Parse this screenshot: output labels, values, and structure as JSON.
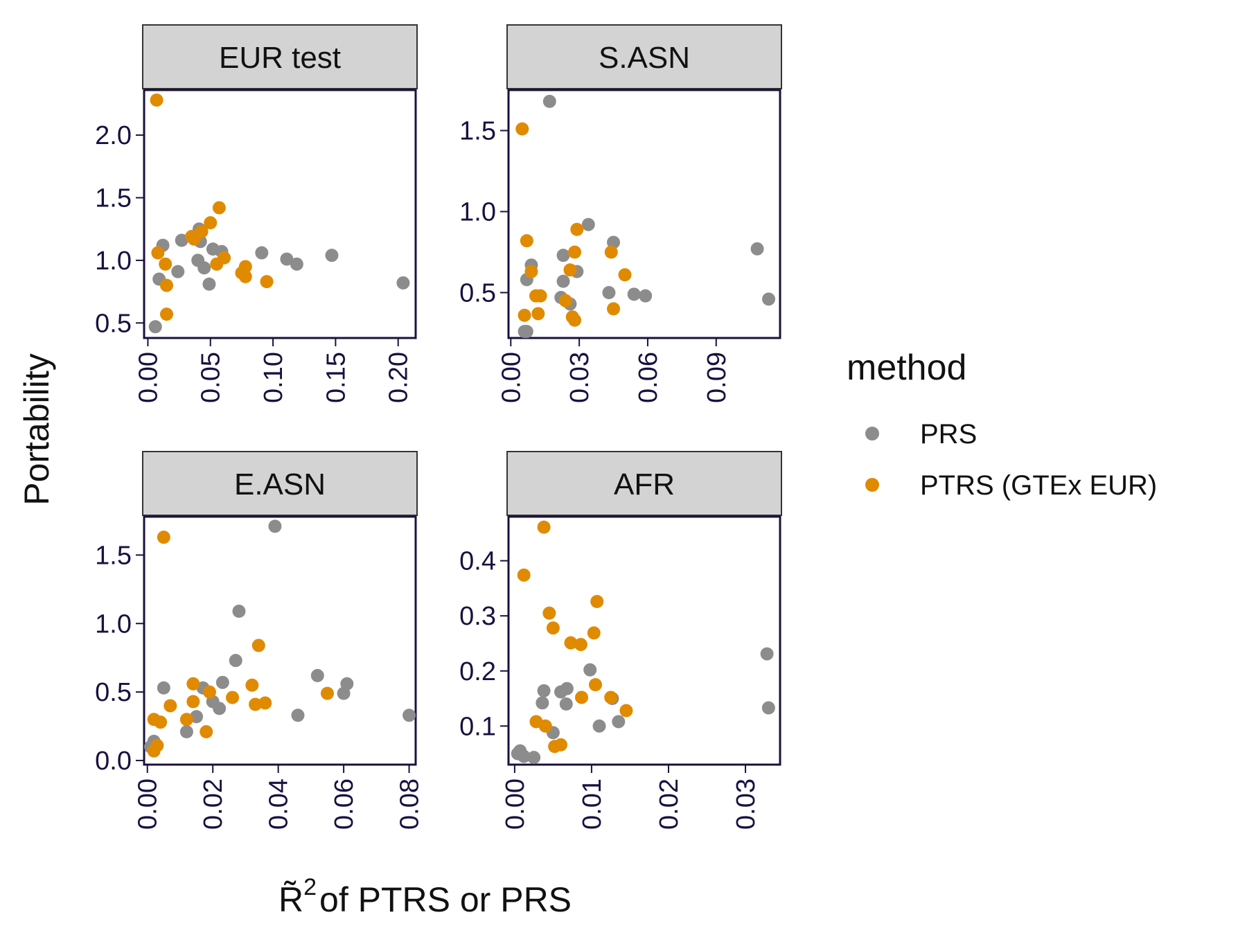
{
  "chart_data": {
    "type": "scatter",
    "ylabel": "Portability",
    "xlabel_prefix": "R̃",
    "xlabel_sup": "2",
    "xlabel_rest": "of PTRS or PRS",
    "legend": {
      "title": "method",
      "position": "right",
      "entries": [
        {
          "name": "PRS",
          "color": "#8c8c8c"
        },
        {
          "name": "PTRS (GTEx EUR)",
          "color": "#e08a00"
        }
      ]
    },
    "panels": [
      {
        "title": "EUR test",
        "xlim": [
          -0.003,
          0.214
        ],
        "ylim": [
          0.38,
          2.36
        ],
        "xticks": [
          0,
          0.05,
          0.1,
          0.15,
          0.2
        ],
        "xtick_labels": [
          "0.00",
          "0.05",
          "0.10",
          "0.15",
          "0.20"
        ],
        "yticks": [
          0.5,
          1.0,
          1.5,
          2.0
        ],
        "ytick_labels": [
          "0.5",
          "1.0",
          "1.5",
          "2.0"
        ],
        "series": [
          {
            "name": "PRS",
            "points": [
              [
                0.006,
                0.47
              ],
              [
                0.009,
                0.85
              ],
              [
                0.012,
                1.12
              ],
              [
                0.024,
                0.91
              ],
              [
                0.027,
                1.16
              ],
              [
                0.04,
                1.0
              ],
              [
                0.041,
                1.25
              ],
              [
                0.042,
                1.15
              ],
              [
                0.045,
                0.94
              ],
              [
                0.049,
                0.81
              ],
              [
                0.052,
                1.09
              ],
              [
                0.059,
                1.07
              ],
              [
                0.091,
                1.06
              ],
              [
                0.111,
                1.01
              ],
              [
                0.119,
                0.97
              ],
              [
                0.147,
                1.04
              ],
              [
                0.204,
                0.82
              ]
            ]
          },
          {
            "name": "PTRS (GTEx EUR)",
            "points": [
              [
                0.007,
                2.28
              ],
              [
                0.008,
                1.06
              ],
              [
                0.014,
                0.97
              ],
              [
                0.015,
                0.8
              ],
              [
                0.015,
                0.57
              ],
              [
                0.035,
                1.19
              ],
              [
                0.037,
                1.17
              ],
              [
                0.043,
                1.23
              ],
              [
                0.05,
                1.3
              ],
              [
                0.055,
                0.97
              ],
              [
                0.057,
                1.42
              ],
              [
                0.061,
                1.02
              ],
              [
                0.075,
                0.9
              ],
              [
                0.078,
                0.95
              ],
              [
                0.078,
                0.87
              ],
              [
                0.095,
                0.83
              ]
            ]
          }
        ]
      },
      {
        "title": "S.ASN",
        "xlim": [
          -0.001,
          0.118
        ],
        "ylim": [
          0.22,
          1.75
        ],
        "xticks": [
          0,
          0.03,
          0.06,
          0.09
        ],
        "xtick_labels": [
          "0.00",
          "0.03",
          "0.06",
          "0.09"
        ],
        "yticks": [
          0.5,
          1.0,
          1.5
        ],
        "ytick_labels": [
          "0.5",
          "1.0",
          "1.5"
        ],
        "series": [
          {
            "name": "PRS",
            "points": [
              [
                0.006,
                0.26
              ],
              [
                0.007,
                0.26
              ],
              [
                0.007,
                0.58
              ],
              [
                0.009,
                0.67
              ],
              [
                0.017,
                1.68
              ],
              [
                0.022,
                0.47
              ],
              [
                0.023,
                0.57
              ],
              [
                0.023,
                0.73
              ],
              [
                0.026,
                0.43
              ],
              [
                0.029,
                0.63
              ],
              [
                0.034,
                0.92
              ],
              [
                0.043,
                0.5
              ],
              [
                0.045,
                0.81
              ],
              [
                0.054,
                0.49
              ],
              [
                0.059,
                0.48
              ],
              [
                0.108,
                0.77
              ],
              [
                0.113,
                0.46
              ]
            ]
          },
          {
            "name": "PTRS (GTEx EUR)",
            "points": [
              [
                0.005,
                1.51
              ],
              [
                0.006,
                0.36
              ],
              [
                0.007,
                0.82
              ],
              [
                0.009,
                0.63
              ],
              [
                0.011,
                0.48
              ],
              [
                0.012,
                0.37
              ],
              [
                0.013,
                0.48
              ],
              [
                0.024,
                0.45
              ],
              [
                0.026,
                0.64
              ],
              [
                0.027,
                0.35
              ],
              [
                0.028,
                0.33
              ],
              [
                0.028,
                0.75
              ],
              [
                0.029,
                0.89
              ],
              [
                0.044,
                0.75
              ],
              [
                0.045,
                0.4
              ],
              [
                0.05,
                0.61
              ]
            ]
          }
        ]
      },
      {
        "title": "E.ASN",
        "xlim": [
          -0.001,
          0.082
        ],
        "ylim": [
          -0.03,
          1.78
        ],
        "xticks": [
          0,
          0.02,
          0.04,
          0.06,
          0.08
        ],
        "xtick_labels": [
          "0.00",
          "0.02",
          "0.04",
          "0.06",
          "0.08"
        ],
        "yticks": [
          0,
          0.5,
          1.0,
          1.5
        ],
        "ytick_labels": [
          "0.0",
          "0.5",
          "1.0",
          "1.5"
        ],
        "series": [
          {
            "name": "PRS",
            "points": [
              [
                0.001,
                0.1
              ],
              [
                0.002,
                0.14
              ],
              [
                0.005,
                0.53
              ],
              [
                0.012,
                0.21
              ],
              [
                0.015,
                0.32
              ],
              [
                0.017,
                0.53
              ],
              [
                0.02,
                0.43
              ],
              [
                0.022,
                0.38
              ],
              [
                0.023,
                0.57
              ],
              [
                0.027,
                0.73
              ],
              [
                0.028,
                1.09
              ],
              [
                0.039,
                1.71
              ],
              [
                0.046,
                0.33
              ],
              [
                0.052,
                0.62
              ],
              [
                0.06,
                0.49
              ],
              [
                0.061,
                0.56
              ],
              [
                0.08,
                0.33
              ]
            ]
          },
          {
            "name": "PTRS (GTEx EUR)",
            "points": [
              [
                0.002,
                0.07
              ],
              [
                0.002,
                0.3
              ],
              [
                0.003,
                0.11
              ],
              [
                0.004,
                0.28
              ],
              [
                0.005,
                1.63
              ],
              [
                0.007,
                0.4
              ],
              [
                0.012,
                0.3
              ],
              [
                0.014,
                0.43
              ],
              [
                0.014,
                0.56
              ],
              [
                0.018,
                0.21
              ],
              [
                0.019,
                0.5
              ],
              [
                0.026,
                0.46
              ],
              [
                0.032,
                0.55
              ],
              [
                0.033,
                0.41
              ],
              [
                0.034,
                0.84
              ],
              [
                0.036,
                0.42
              ],
              [
                0.055,
                0.49
              ]
            ]
          }
        ]
      },
      {
        "title": "AFR",
        "xlim": [
          -0.0008,
          0.0345
        ],
        "ylim": [
          0.03,
          0.48
        ],
        "xticks": [
          0,
          0.01,
          0.02,
          0.03
        ],
        "xtick_labels": [
          "0.00",
          "0.01",
          "0.02",
          "0.03"
        ],
        "yticks": [
          0.1,
          0.2,
          0.3,
          0.4
        ],
        "ytick_labels": [
          "0.1",
          "0.2",
          "0.3",
          "0.4"
        ],
        "series": [
          {
            "name": "PRS",
            "points": [
              [
                0.0004,
                0.05
              ],
              [
                0.0007,
                0.055
              ],
              [
                0.0012,
                0.045
              ],
              [
                0.0025,
                0.043
              ],
              [
                0.0036,
                0.142
              ],
              [
                0.0038,
                0.164
              ],
              [
                0.005,
                0.088
              ],
              [
                0.006,
                0.162
              ],
              [
                0.0067,
                0.14
              ],
              [
                0.0068,
                0.168
              ],
              [
                0.0098,
                0.202
              ],
              [
                0.011,
                0.1
              ],
              [
                0.0127,
                0.15
              ],
              [
                0.0135,
                0.108
              ],
              [
                0.0328,
                0.231
              ],
              [
                0.033,
                0.133
              ]
            ]
          },
          {
            "name": "PTRS (GTEx EUR)",
            "points": [
              [
                0.0012,
                0.374
              ],
              [
                0.0028,
                0.108
              ],
              [
                0.0038,
                0.461
              ],
              [
                0.004,
                0.1
              ],
              [
                0.0045,
                0.305
              ],
              [
                0.005,
                0.278
              ],
              [
                0.0052,
                0.063
              ],
              [
                0.006,
                0.066
              ],
              [
                0.0073,
                0.251
              ],
              [
                0.0086,
                0.248
              ],
              [
                0.0087,
                0.152
              ],
              [
                0.0103,
                0.269
              ],
              [
                0.0105,
                0.175
              ],
              [
                0.0107,
                0.326
              ],
              [
                0.0125,
                0.152
              ],
              [
                0.0145,
                0.128
              ]
            ]
          }
        ]
      }
    ]
  }
}
